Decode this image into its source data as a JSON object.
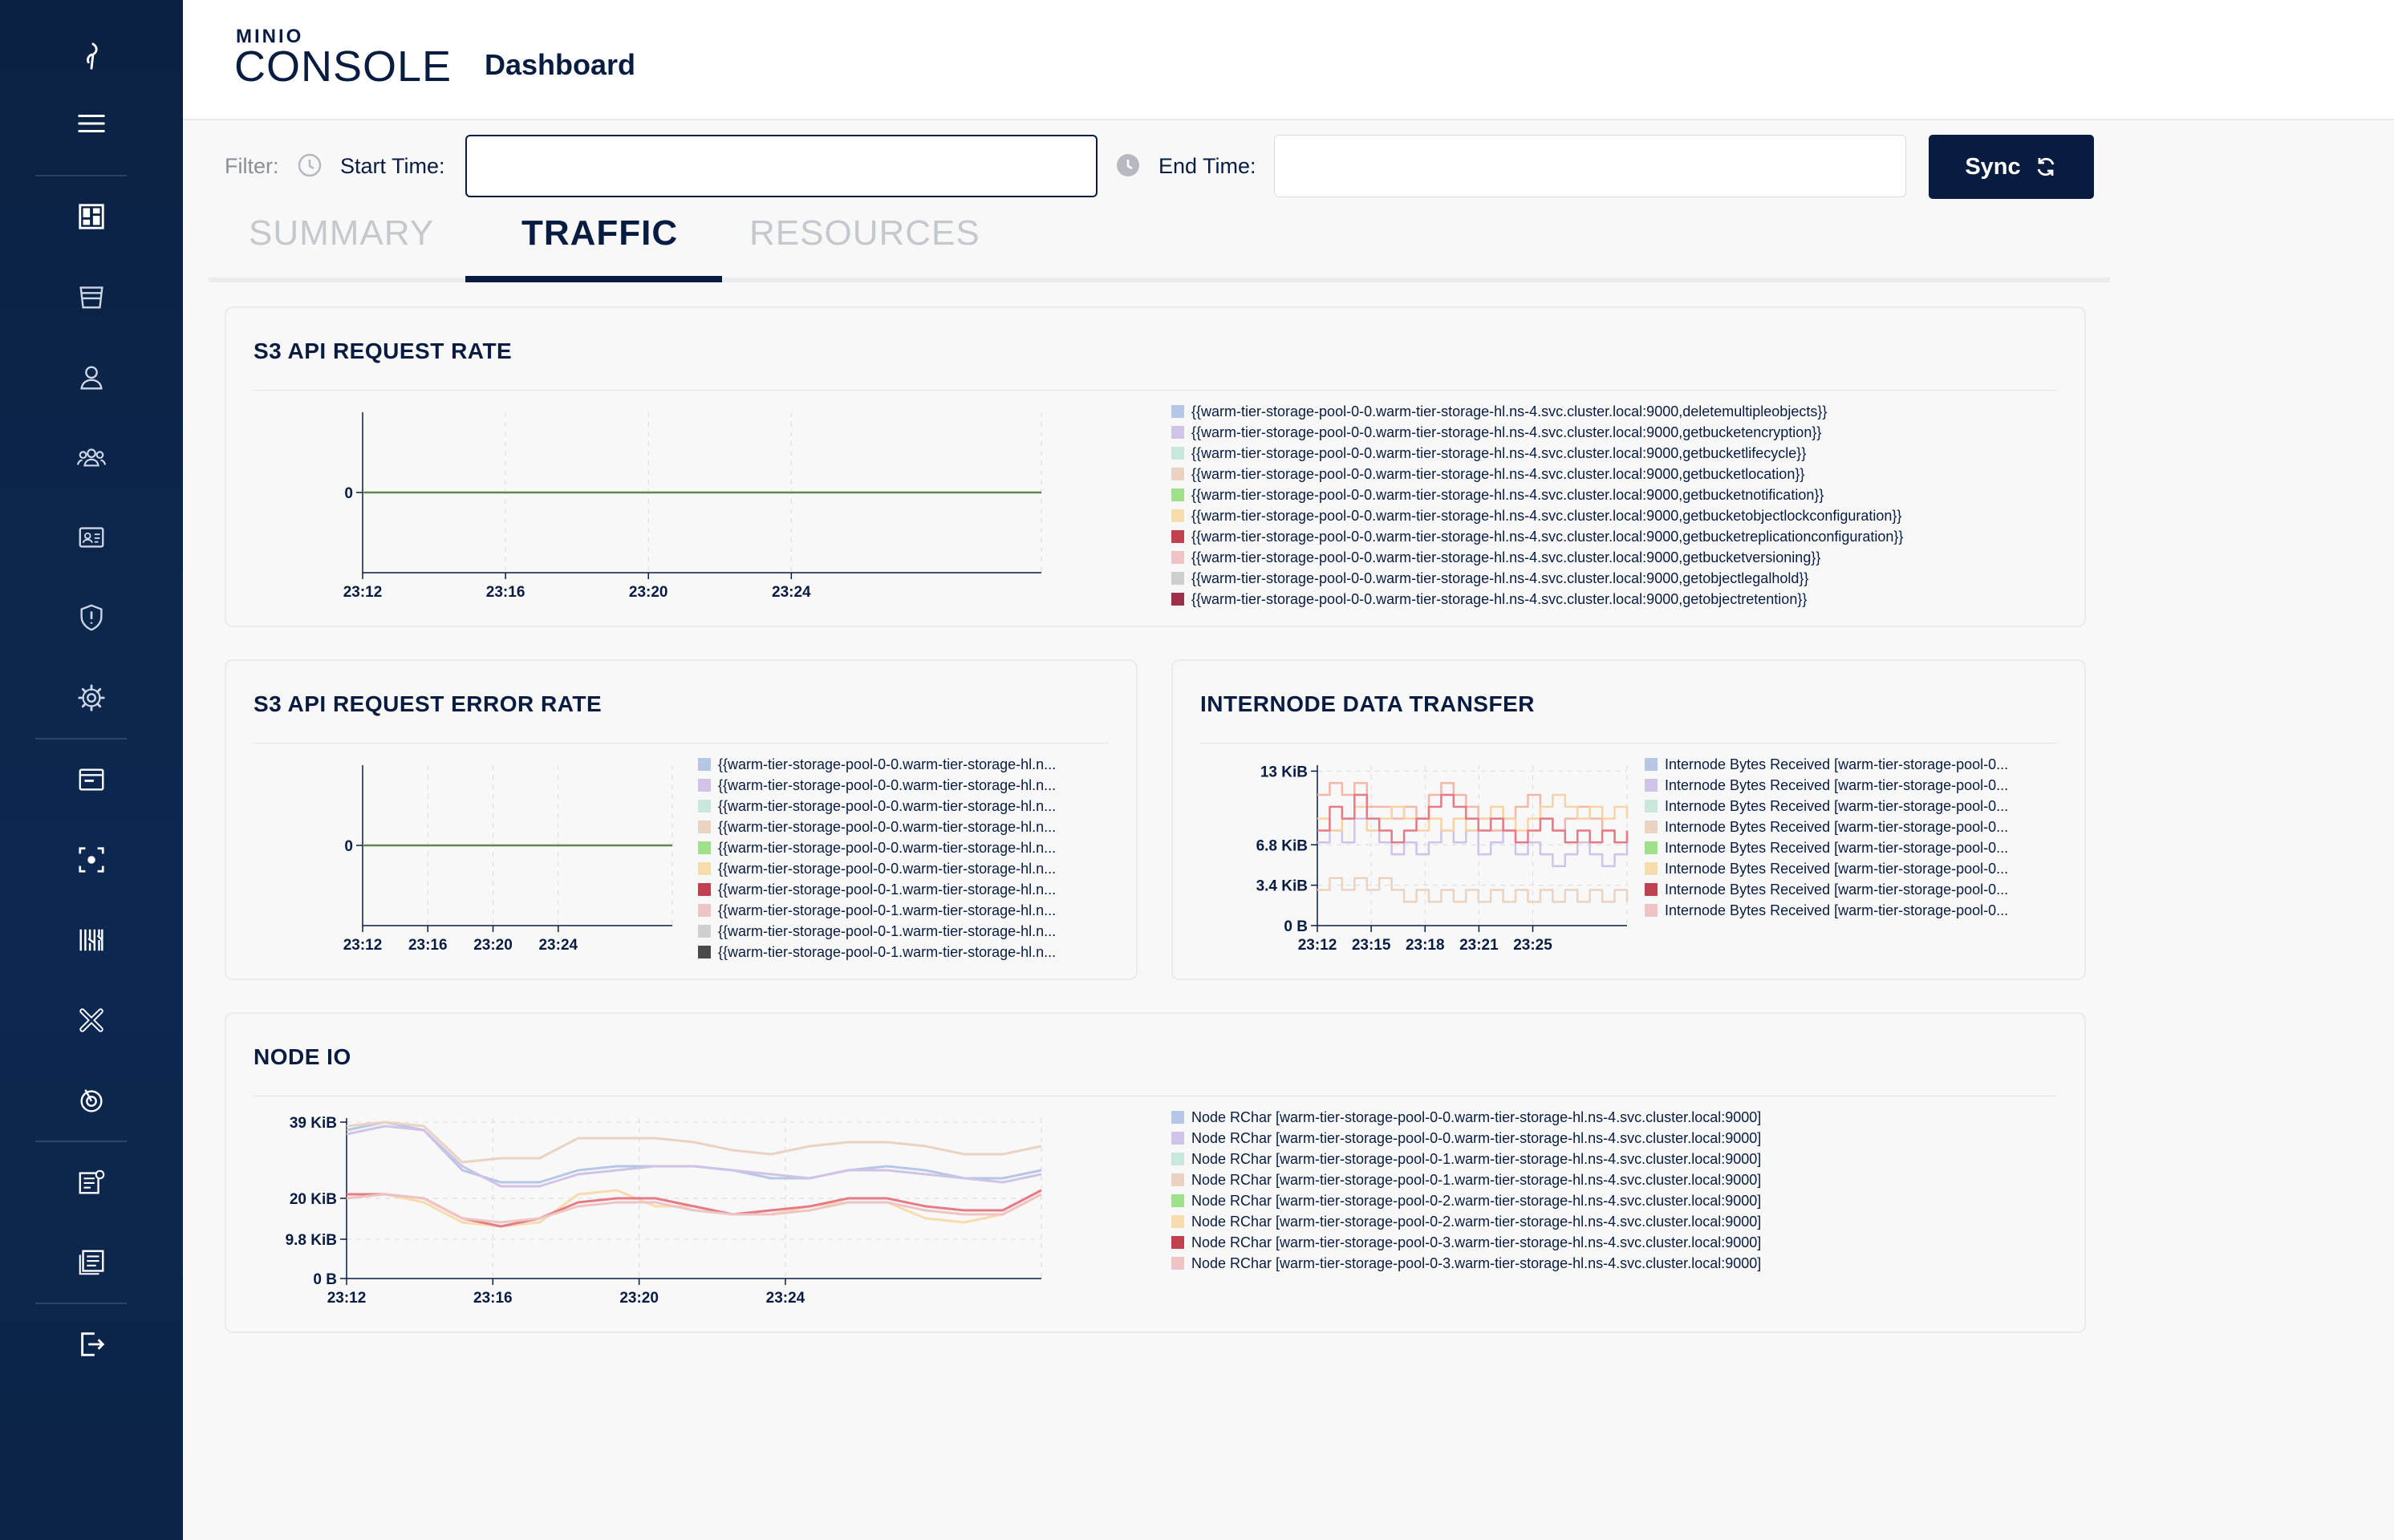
{
  "app": {
    "logo_top": "MINIO",
    "logo_main": "CONSOLE",
    "page_title": "Dashboard"
  },
  "sidebar": {
    "items": [
      {
        "name": "minio-bird-icon"
      },
      {
        "name": "menu-icon"
      },
      {
        "name": "dashboard-icon"
      },
      {
        "name": "buckets-icon"
      },
      {
        "name": "user-icon"
      },
      {
        "name": "groups-icon"
      },
      {
        "name": "service-accounts-icon"
      },
      {
        "name": "policies-icon"
      },
      {
        "name": "settings-icon"
      },
      {
        "name": "notifications-icon"
      },
      {
        "name": "tiers-icon"
      },
      {
        "name": "tools-icon"
      },
      {
        "name": "health-icon"
      },
      {
        "name": "trace-icon"
      },
      {
        "name": "logs-icon"
      },
      {
        "name": "audit-icon"
      },
      {
        "name": "logout-icon"
      }
    ]
  },
  "filter": {
    "label": "Filter:",
    "start_label": "Start Time:",
    "start_value": "",
    "end_label": "End Time:",
    "end_value": "",
    "sync_label": "Sync"
  },
  "tabs": [
    {
      "label": "SUMMARY",
      "active": false
    },
    {
      "label": "TRAFFIC",
      "active": true
    },
    {
      "label": "RESOURCES",
      "active": false
    }
  ],
  "colors": {
    "accent": "#081c42",
    "line_green": "#5e8a4e"
  },
  "panels": {
    "s3_rate": {
      "title": "S3 API REQUEST RATE",
      "legend": [
        {
          "label": "{{warm-tier-storage-pool-0-0.warm-tier-storage-hl.ns-4.svc.cluster.local:9000,deletemultipleobjects}}",
          "color": "#b6c7e6"
        },
        {
          "label": "{{warm-tier-storage-pool-0-0.warm-tier-storage-hl.ns-4.svc.cluster.local:9000,getbucketencryption}}",
          "color": "#cfc4e8"
        },
        {
          "label": "{{warm-tier-storage-pool-0-0.warm-tier-storage-hl.ns-4.svc.cluster.local:9000,getbucketlifecycle}}",
          "color": "#c8e8dc"
        },
        {
          "label": "{{warm-tier-storage-pool-0-0.warm-tier-storage-hl.ns-4.svc.cluster.local:9000,getbucketlocation}}",
          "color": "#ead3c2"
        },
        {
          "label": "{{warm-tier-storage-pool-0-0.warm-tier-storage-hl.ns-4.svc.cluster.local:9000,getbucketnotification}}",
          "color": "#9fe08a"
        },
        {
          "label": "{{warm-tier-storage-pool-0-0.warm-tier-storage-hl.ns-4.svc.cluster.local:9000,getbucketobjectlockconfiguration}}",
          "color": "#f7dcae"
        },
        {
          "label": "{{warm-tier-storage-pool-0-0.warm-tier-storage-hl.ns-4.svc.cluster.local:9000,getbucketreplicationconfiguration}}",
          "color": "#c0414f"
        },
        {
          "label": "{{warm-tier-storage-pool-0-0.warm-tier-storage-hl.ns-4.svc.cluster.local:9000,getbucketversioning}}",
          "color": "#eec4c4"
        },
        {
          "label": "{{warm-tier-storage-pool-0-0.warm-tier-storage-hl.ns-4.svc.cluster.local:9000,getobjectlegalhold}}",
          "color": "#cfcfcf"
        },
        {
          "label": "{{warm-tier-storage-pool-0-0.warm-tier-storage-hl.ns-4.svc.cluster.local:9000,getobjectretention}}",
          "color": "#9b3048"
        }
      ]
    },
    "s3_error": {
      "title": "S3 API REQUEST ERROR RATE",
      "legend": [
        {
          "label": "{{warm-tier-storage-pool-0-0.warm-tier-storage-hl.n...",
          "color": "#b6c7e6"
        },
        {
          "label": "{{warm-tier-storage-pool-0-0.warm-tier-storage-hl.n...",
          "color": "#cfc4e8"
        },
        {
          "label": "{{warm-tier-storage-pool-0-0.warm-tier-storage-hl.n...",
          "color": "#c8e8dc"
        },
        {
          "label": "{{warm-tier-storage-pool-0-0.warm-tier-storage-hl.n...",
          "color": "#ead3c2"
        },
        {
          "label": "{{warm-tier-storage-pool-0-0.warm-tier-storage-hl.n...",
          "color": "#9fe08a"
        },
        {
          "label": "{{warm-tier-storage-pool-0-0.warm-tier-storage-hl.n...",
          "color": "#f7dcae"
        },
        {
          "label": "{{warm-tier-storage-pool-0-1.warm-tier-storage-hl.n...",
          "color": "#c0414f"
        },
        {
          "label": "{{warm-tier-storage-pool-0-1.warm-tier-storage-hl.n...",
          "color": "#eec4c4"
        },
        {
          "label": "{{warm-tier-storage-pool-0-1.warm-tier-storage-hl.n...",
          "color": "#cfcfcf"
        },
        {
          "label": "{{warm-tier-storage-pool-0-1.warm-tier-storage-hl.n...",
          "color": "#4a4a4a"
        }
      ]
    },
    "internode": {
      "title": "INTERNODE DATA TRANSFER",
      "legend": [
        {
          "label": "Internode Bytes Received [warm-tier-storage-pool-0...",
          "color": "#b6c7e6"
        },
        {
          "label": "Internode Bytes Received [warm-tier-storage-pool-0...",
          "color": "#cfc4e8"
        },
        {
          "label": "Internode Bytes Received [warm-tier-storage-pool-0...",
          "color": "#c8e8dc"
        },
        {
          "label": "Internode Bytes Received [warm-tier-storage-pool-0...",
          "color": "#ead3c2"
        },
        {
          "label": "Internode Bytes Received [warm-tier-storage-pool-0...",
          "color": "#9fe08a"
        },
        {
          "label": "Internode Bytes Received [warm-tier-storage-pool-0...",
          "color": "#f7dcae"
        },
        {
          "label": "Internode Bytes Received [warm-tier-storage-pool-0...",
          "color": "#c0414f"
        },
        {
          "label": "Internode Bytes Received [warm-tier-storage-pool-0...",
          "color": "#eec4c4"
        }
      ]
    },
    "node_io": {
      "title": "NODE IO",
      "legend": [
        {
          "label": "Node RChar [warm-tier-storage-pool-0-0.warm-tier-storage-hl.ns-4.svc.cluster.local:9000]",
          "color": "#b6c7e6"
        },
        {
          "label": "Node RChar [warm-tier-storage-pool-0-0.warm-tier-storage-hl.ns-4.svc.cluster.local:9000]",
          "color": "#cfc4e8"
        },
        {
          "label": "Node RChar [warm-tier-storage-pool-0-1.warm-tier-storage-hl.ns-4.svc.cluster.local:9000]",
          "color": "#c8e8dc"
        },
        {
          "label": "Node RChar [warm-tier-storage-pool-0-1.warm-tier-storage-hl.ns-4.svc.cluster.local:9000]",
          "color": "#ead3c2"
        },
        {
          "label": "Node RChar [warm-tier-storage-pool-0-2.warm-tier-storage-hl.ns-4.svc.cluster.local:9000]",
          "color": "#9fe08a"
        },
        {
          "label": "Node RChar [warm-tier-storage-pool-0-2.warm-tier-storage-hl.ns-4.svc.cluster.local:9000]",
          "color": "#f7dcae"
        },
        {
          "label": "Node RChar [warm-tier-storage-pool-0-3.warm-tier-storage-hl.ns-4.svc.cluster.local:9000]",
          "color": "#c0414f"
        },
        {
          "label": "Node RChar [warm-tier-storage-pool-0-3.warm-tier-storage-hl.ns-4.svc.cluster.local:9000]",
          "color": "#eec4c4"
        }
      ]
    }
  },
  "chart_data": [
    {
      "id": "s3_rate",
      "type": "line",
      "title": "S3 API REQUEST RATE",
      "x_ticks": [
        "23:12",
        "23:16",
        "23:20",
        "23:24"
      ],
      "y_ticks": [
        "0"
      ],
      "ylim": [
        -1,
        1
      ],
      "grid": true,
      "series": [
        {
          "values": [
            0,
            0,
            0,
            0,
            0
          ],
          "color": "#5e8a4e"
        }
      ]
    },
    {
      "id": "s3_error",
      "type": "line",
      "title": "S3 API REQUEST ERROR RATE",
      "x_ticks": [
        "23:12",
        "23:16",
        "23:20",
        "23:24"
      ],
      "y_ticks": [
        "0"
      ],
      "ylim": [
        -1,
        1
      ],
      "grid": true,
      "series": [
        {
          "values": [
            0,
            0,
            0,
            0,
            0
          ],
          "color": "#5e8a4e"
        }
      ]
    },
    {
      "id": "internode",
      "type": "line",
      "title": "INTERNODE DATA TRANSFER",
      "x_ticks": [
        "23:12",
        "23:15",
        "23:18",
        "23:21",
        "23:25"
      ],
      "y_ticks": [
        "13 KiB",
        "6.8 KiB",
        "3.4 KiB",
        "0 B"
      ],
      "y_tick_values": [
        13,
        6.8,
        3.4,
        0
      ],
      "ylim": [
        0,
        13.5
      ],
      "grid": true,
      "series": [
        {
          "color": "#f2b8a8",
          "values": [
            11,
            12,
            11,
            12,
            10,
            10,
            9,
            10,
            9,
            11,
            12,
            11,
            10,
            9,
            8,
            9,
            10,
            11,
            9,
            8,
            9,
            10,
            9,
            8,
            7,
            8
          ]
        },
        {
          "color": "#cfc4e8",
          "values": [
            7,
            8,
            7,
            9,
            8,
            7,
            6,
            7,
            6,
            7,
            8,
            7,
            8,
            6,
            7,
            8,
            6,
            7,
            6,
            5,
            6,
            7,
            6,
            5,
            6,
            7
          ]
        },
        {
          "color": "#f7d3a6",
          "values": [
            9,
            8,
            9,
            10,
            8,
            9,
            10,
            9,
            8,
            9,
            8,
            9,
            8,
            9,
            10,
            9,
            8,
            9,
            10,
            11,
            10,
            9,
            10,
            9,
            10,
            9
          ]
        },
        {
          "color": "#ead3c2",
          "values": [
            3,
            4,
            3,
            4,
            3,
            4,
            3,
            2,
            3,
            2,
            3,
            2,
            3,
            2,
            3,
            2,
            3,
            2,
            3,
            2,
            3,
            2,
            3,
            2,
            3,
            2
          ]
        },
        {
          "color": "#e57b86",
          "values": [
            8,
            10,
            9,
            11,
            9,
            8,
            7,
            8,
            9,
            10,
            11,
            10,
            9,
            8,
            9,
            8,
            7,
            8,
            9,
            8,
            7,
            8,
            7,
            8,
            7,
            8
          ]
        }
      ]
    },
    {
      "id": "node_io",
      "type": "line",
      "title": "NODE IO",
      "x_ticks": [
        "23:12",
        "23:16",
        "23:20",
        "23:24"
      ],
      "y_ticks": [
        "39 KiB",
        "20 KiB",
        "9.8 KiB",
        "0 B"
      ],
      "y_tick_values": [
        39,
        20,
        9.8,
        0
      ],
      "ylim": [
        0,
        40
      ],
      "grid": true,
      "series": [
        {
          "color": "#b6c7e6",
          "values": [
            37,
            39,
            37,
            27,
            24,
            24,
            27,
            28,
            28,
            28,
            27,
            25,
            25,
            27,
            28,
            27,
            25,
            25,
            27
          ]
        },
        {
          "color": "#cfc4e8",
          "values": [
            36,
            38,
            37,
            28,
            23,
            23,
            26,
            27,
            28,
            28,
            27,
            26,
            25,
            27,
            27,
            26,
            25,
            24,
            26
          ]
        },
        {
          "color": "#ead3c2",
          "values": [
            38,
            39,
            38,
            29,
            30,
            30,
            35,
            35,
            35,
            34,
            32,
            31,
            33,
            34,
            34,
            33,
            31,
            31,
            33
          ]
        },
        {
          "color": "#f7dcae",
          "values": [
            20,
            21,
            19,
            14,
            13,
            14,
            21,
            22,
            18,
            18,
            16,
            16,
            18,
            19,
            19,
            15,
            14,
            16,
            21
          ]
        },
        {
          "color": "#e57b86",
          "values": [
            21,
            21,
            20,
            15,
            13,
            15,
            19,
            20,
            20,
            18,
            16,
            17,
            18,
            20,
            20,
            18,
            17,
            17,
            22
          ]
        },
        {
          "color": "#eec4c4",
          "values": [
            20,
            21,
            20,
            15,
            14,
            15,
            18,
            19,
            19,
            17,
            16,
            16,
            17,
            19,
            19,
            17,
            16,
            16,
            21
          ]
        }
      ]
    }
  ]
}
